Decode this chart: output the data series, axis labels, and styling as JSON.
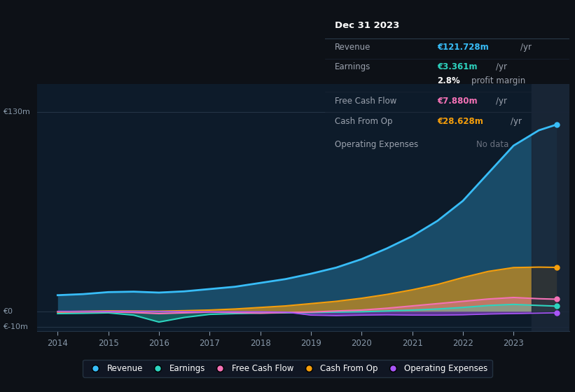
{
  "bg_color": "#0d1117",
  "chart_bg": "#0d1b2a",
  "grid_color": "#1e2d3d",
  "years": [
    2014,
    2014.5,
    2015,
    2015.5,
    2016,
    2016.5,
    2017,
    2017.5,
    2018,
    2018.5,
    2019,
    2019.5,
    2020,
    2020.5,
    2021,
    2021.5,
    2022,
    2022.5,
    2023,
    2023.5,
    2023.85
  ],
  "revenue": [
    10.5,
    11.2,
    12.5,
    12.8,
    12.2,
    13.0,
    14.5,
    16.0,
    18.5,
    21.0,
    24.5,
    28.5,
    34.0,
    41.0,
    49.0,
    59.0,
    72.0,
    90.0,
    108.0,
    118.0,
    121.728
  ],
  "earnings": [
    -1.5,
    -1.3,
    -1.0,
    -2.5,
    -7.0,
    -4.0,
    -2.0,
    -1.5,
    -1.2,
    -1.0,
    -0.8,
    -0.5,
    -0.3,
    0.2,
    0.8,
    1.5,
    2.5,
    3.8,
    4.5,
    3.8,
    3.361
  ],
  "free_cash_flow": [
    -0.5,
    -0.4,
    -0.3,
    -0.8,
    -1.5,
    -1.0,
    -0.5,
    -0.8,
    -1.2,
    -0.8,
    -0.5,
    0.2,
    0.8,
    2.0,
    3.5,
    5.0,
    6.5,
    8.0,
    9.0,
    8.2,
    7.88
  ],
  "cash_from_op": [
    -0.3,
    0.0,
    0.3,
    0.2,
    0.1,
    0.4,
    0.8,
    1.5,
    2.5,
    3.5,
    5.0,
    6.5,
    8.5,
    11.0,
    14.0,
    17.5,
    22.0,
    26.0,
    28.5,
    28.8,
    28.628
  ],
  "operating_expenses": [
    0.0,
    0.0,
    0.0,
    0.0,
    -0.1,
    -0.2,
    -0.3,
    -0.3,
    -0.3,
    -0.5,
    -2.5,
    -2.8,
    -2.5,
    -2.3,
    -2.5,
    -2.5,
    -2.3,
    -1.8,
    -1.5,
    -1.2,
    -1.0
  ],
  "revenue_color": "#38bdf8",
  "earnings_color": "#2dd4bf",
  "fcf_color": "#f472b6",
  "cashfromop_color": "#f59e0b",
  "opex_color": "#a855f7",
  "ylim_min": -13,
  "ylim_max": 148,
  "ytick_vals": [
    -10,
    0,
    130
  ],
  "ytick_labels": [
    "€-10m",
    "€0",
    "€130m"
  ],
  "xlim_min": 2013.6,
  "xlim_max": 2024.1,
  "xticks": [
    2014,
    2015,
    2016,
    2017,
    2018,
    2019,
    2020,
    2021,
    2022,
    2023
  ],
  "highlight_start": 2023.35,
  "highlight_end": 2024.1,
  "dot_x": 2023.85,
  "tooltip_title": "Dec 31 2023",
  "tooltip_revenue": "€121.728m",
  "tooltip_earnings": "€3.361m",
  "tooltip_fcf": "€7.880m",
  "tooltip_cashop": "€28.628m",
  "legend_items": [
    "Revenue",
    "Earnings",
    "Free Cash Flow",
    "Cash From Op",
    "Operating Expenses"
  ],
  "legend_colors": [
    "#38bdf8",
    "#2dd4bf",
    "#f472b6",
    "#f59e0b",
    "#a855f7"
  ]
}
